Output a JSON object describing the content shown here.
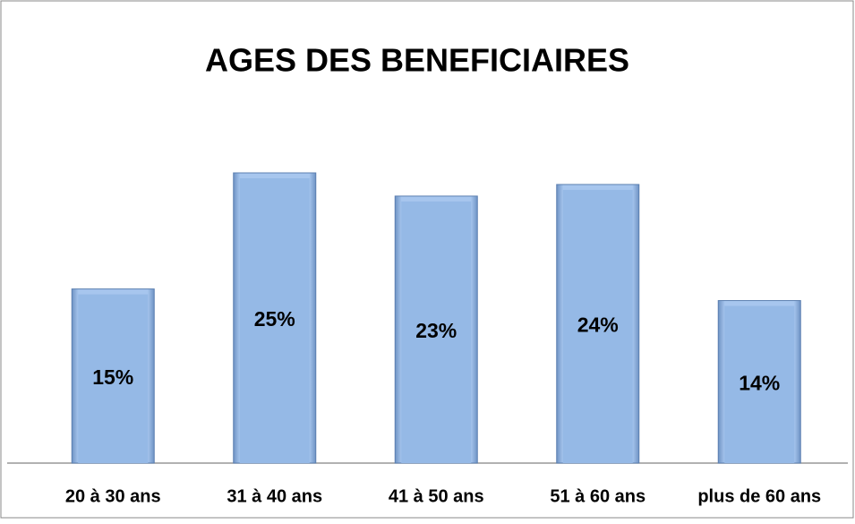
{
  "chart_data": {
    "type": "bar",
    "title": "AGES DES BENEFICIAIRES",
    "categories": [
      "20 à 30 ans",
      "31 à 40 ans",
      "41 à 50 ans",
      "51 à 60 ans",
      "plus de 60 ans"
    ],
    "values": [
      15,
      25,
      23,
      24,
      14
    ],
    "value_labels": [
      "15%",
      "25%",
      "23%",
      "24%",
      "14%"
    ],
    "color": "#95b9e6"
  }
}
